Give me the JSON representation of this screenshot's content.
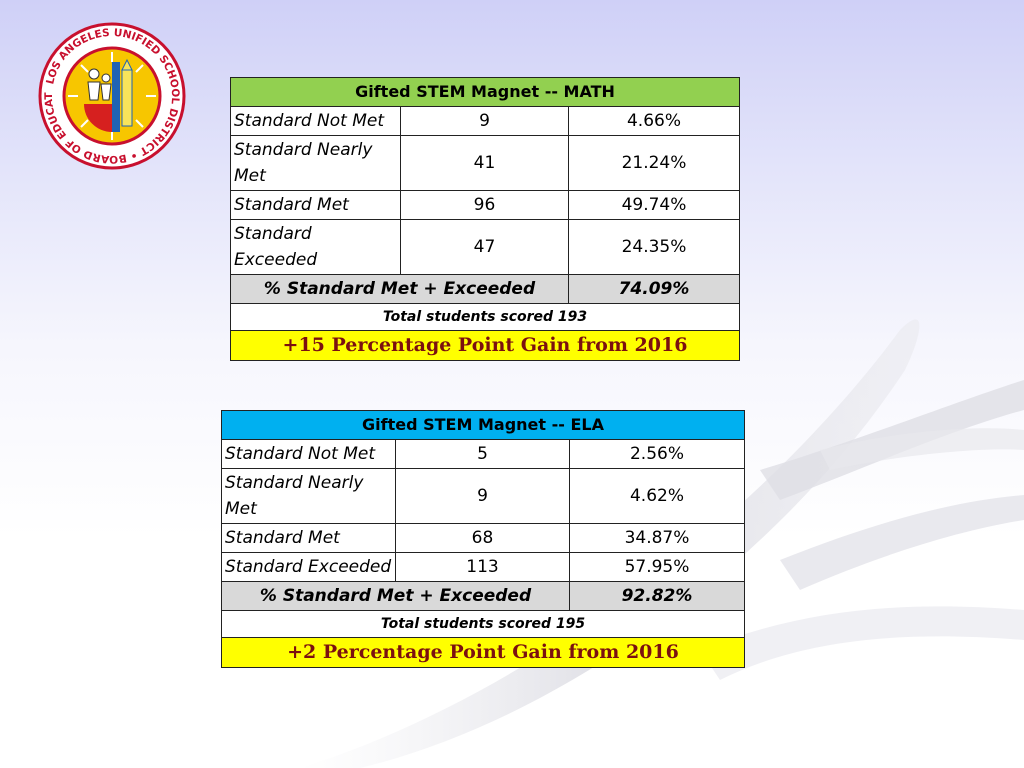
{
  "logo": {
    "ring_text": "LOS ANGELES UNIFIED SCHOOL DISTRICT • BOARD OF EDUCATION •",
    "colors": {
      "ring": "#ffffff",
      "border": "#c8102e",
      "sun": "#f7c600",
      "accent": "#1f63b4",
      "red": "#d6201f"
    }
  },
  "math": {
    "title": "Gifted STEM Magnet -- MATH",
    "header_color": "#92d050",
    "rows": [
      {
        "label": "Standard Not Met",
        "count": "9",
        "percent": "4.66%"
      },
      {
        "label": "Standard Nearly Met",
        "count": "41",
        "percent": "21.24%"
      },
      {
        "label": "Standard Met",
        "count": "96",
        "percent": "49.74%"
      },
      {
        "label": "Standard Exceeded",
        "count": "47",
        "percent": "24.35%"
      }
    ],
    "summary_label": "% Standard Met + Exceeded",
    "summary_value": "74.09%",
    "total": "Total students scored 193",
    "gain": "+15 Percentage Point Gain from 2016"
  },
  "ela": {
    "title": "Gifted STEM Magnet -- ELA",
    "header_color": "#00b0f0",
    "rows": [
      {
        "label": "Standard Not Met",
        "count": "5",
        "percent": "2.56%"
      },
      {
        "label": "Standard Nearly Met",
        "count": "9",
        "percent": "4.62%"
      },
      {
        "label": "Standard Met",
        "count": "68",
        "percent": "34.87%"
      },
      {
        "label": "Standard Exceeded",
        "count": "113",
        "percent": "57.95%"
      }
    ],
    "summary_label": "% Standard Met + Exceeded",
    "summary_value": "92.82%",
    "total": "Total students scored 195",
    "gain": "+2 Percentage Point Gain from 2016"
  }
}
